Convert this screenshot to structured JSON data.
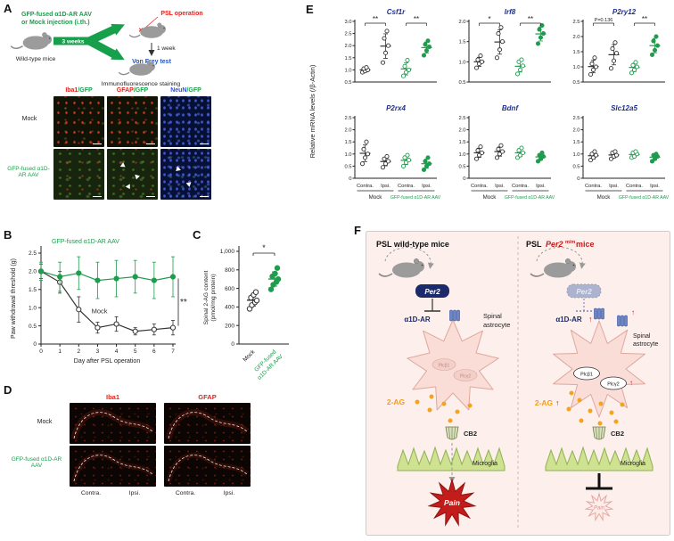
{
  "colors": {
    "green": "#1f9c4d",
    "red": "#e3231e",
    "blue": "#2456c4",
    "navy": "#1b2a6b",
    "orange": "#f59d17",
    "mock": "#333333"
  },
  "panels": {
    "A": {
      "label": "A",
      "injection1": "GFP-fused α1D-AR AAV",
      "injection2": "or Mock injection (i.th.)",
      "wildtype": "Wild-type mice",
      "weeks3": "3 weeks",
      "psl_mark": "✕",
      "psl": "PSL operation",
      "week1": "1 week",
      "vonfrey": "Von Frey test",
      "immuno": "Immunofluorescence staining",
      "headers": [
        {
          "main": "Iba1",
          "suffix": "/GFP"
        },
        {
          "main": "GFAP",
          "suffix": "/GFP"
        },
        {
          "main": "NeuN",
          "suffix": "/GFP"
        }
      ],
      "rows": [
        "Mock",
        "GFP-fused α1D-AR AAV"
      ]
    },
    "B": {
      "label": "B"
    },
    "C": {
      "label": "C"
    },
    "D": {
      "label": "D",
      "headers": [
        "Iba1",
        "GFAP"
      ],
      "rows": [
        "Mock",
        "GFP-fused α1D-AR AAV"
      ],
      "sides": [
        "Contra.",
        "Ipsi."
      ]
    },
    "E": {
      "label": "E"
    },
    "F": {
      "label": "F",
      "left_title": "PSL wild-type mice",
      "right_title": {
        "pre": "PSL",
        "gene": "Per2",
        "sup": "m/m",
        "post": "mice"
      },
      "shared": {
        "per2": "Per2",
        "a1dar": "α1D-AR",
        "spinal": "Spinal",
        "astrocyte": "astrocyte",
        "ag": "2-AG",
        "cb2": "CB2",
        "microglia": "Microglia",
        "pain": "Pain",
        "plcb1": "Plcβ1",
        "plcg2": "Plcγ2",
        "up": "↑"
      }
    }
  },
  "chart_data": [
    {
      "id": "B",
      "type": "line",
      "xlabel": "Day after PSL operation",
      "ylabel": "Paw withdrawal threshold (g)",
      "x": [
        0,
        1,
        2,
        3,
        4,
        5,
        6,
        7
      ],
      "ylim": [
        0,
        2.5
      ],
      "yticks": [
        0,
        0.5,
        1.0,
        1.5,
        2.0,
        2.5
      ],
      "significance": "**",
      "series": [
        {
          "name": "GFP-fused α1D-AR AAV",
          "color": "#1f9c4d",
          "marker": "filled",
          "values": [
            2.0,
            1.85,
            1.95,
            1.75,
            1.8,
            1.85,
            1.75,
            1.85
          ],
          "errors": [
            0.25,
            0.4,
            0.45,
            0.5,
            0.5,
            0.45,
            0.5,
            0.55
          ]
        },
        {
          "name": "Mock",
          "color": "#333333",
          "marker": "open",
          "values": [
            2.0,
            1.7,
            0.95,
            0.45,
            0.55,
            0.35,
            0.4,
            0.45
          ],
          "errors": [
            0.2,
            0.3,
            0.35,
            0.15,
            0.2,
            0.1,
            0.15,
            0.2
          ]
        }
      ]
    },
    {
      "id": "C",
      "type": "scatter",
      "ylabel_lines": [
        "Spinal 2-AG content",
        "(pmol/mg protein)"
      ],
      "ylim": [
        0,
        1000
      ],
      "yticks": [
        0,
        200,
        400,
        600,
        800,
        1000
      ],
      "significance": "*",
      "groups": [
        {
          "name": "Mock",
          "color": "#333333",
          "marker": "open",
          "points": [
            380,
            420,
            450,
            470,
            500,
            530,
            560
          ]
        },
        {
          "name_lines": [
            "GFP-fused",
            "α1D-AR AAV"
          ],
          "color": "#1f9c4d",
          "marker": "filled",
          "points": [
            590,
            640,
            670,
            700,
            730,
            760,
            820
          ]
        }
      ]
    },
    {
      "id": "E",
      "type": "scatter",
      "ylabel": "Relative mRNA levels (/β-Actin)",
      "group_labels": [
        "Contra.",
        "Ipsi.",
        "Contra.",
        "Ipsi."
      ],
      "cohort_labels": [
        "Mock",
        "GFP-fused α1D-AR AAV"
      ],
      "subplots": [
        {
          "title": "Csf1r",
          "ylim": [
            0.5,
            3.0
          ],
          "yticks": [
            0.5,
            1.0,
            1.5,
            2.0,
            2.5,
            3.0
          ],
          "groups": [
            [
              0.9,
              0.95,
              1.0,
              1.05,
              1.1
            ],
            [
              1.3,
              1.7,
              2.0,
              2.3,
              2.6
            ],
            [
              0.75,
              0.9,
              1.0,
              1.15,
              1.4
            ],
            [
              1.6,
              1.8,
              1.95,
              2.05,
              2.2
            ]
          ],
          "sig": [
            {
              "from": 0,
              "to": 1,
              "label": "**"
            },
            {
              "from": 2,
              "to": 3,
              "label": "**"
            }
          ]
        },
        {
          "title": "Irf8",
          "ylim": [
            0.5,
            2.0
          ],
          "yticks": [
            0.5,
            1.0,
            1.5,
            2.0
          ],
          "groups": [
            [
              0.85,
              0.95,
              1.0,
              1.05,
              1.15
            ],
            [
              1.1,
              1.3,
              1.5,
              1.7,
              1.85
            ],
            [
              0.7,
              0.8,
              0.9,
              1.0,
              1.05
            ],
            [
              1.45,
              1.6,
              1.7,
              1.8,
              1.9
            ]
          ],
          "sig": [
            {
              "from": 0,
              "to": 1,
              "label": "*"
            },
            {
              "from": 2,
              "to": 3,
              "label": "**"
            }
          ]
        },
        {
          "title": "P2ry12",
          "ylim": [
            0.5,
            2.5
          ],
          "yticks": [
            0.5,
            1.0,
            1.5,
            2.0,
            2.5
          ],
          "groups": [
            [
              0.75,
              0.9,
              1.0,
              1.1,
              1.3
            ],
            [
              0.95,
              1.2,
              1.45,
              1.6,
              1.8
            ],
            [
              0.8,
              0.9,
              1.0,
              1.05,
              1.15
            ],
            [
              1.4,
              1.55,
              1.7,
              1.85,
              2.0
            ]
          ],
          "sig": [
            {
              "from": 0,
              "to": 1,
              "label": "P=0.136"
            },
            {
              "from": 2,
              "to": 3,
              "label": "**"
            }
          ]
        },
        {
          "title": "P2rx4",
          "ylim": [
            0,
            2.5
          ],
          "yticks": [
            0,
            0.5,
            1.0,
            1.5,
            2.0,
            2.5
          ],
          "groups": [
            [
              0.6,
              0.85,
              1.0,
              1.2,
              1.5
            ],
            [
              0.45,
              0.6,
              0.7,
              0.8,
              0.9
            ],
            [
              0.5,
              0.65,
              0.75,
              0.85,
              0.95
            ],
            [
              0.35,
              0.5,
              0.6,
              0.7,
              0.85
            ]
          ],
          "sig": []
        },
        {
          "title": "Bdnf",
          "ylim": [
            0,
            2.5
          ],
          "yticks": [
            0,
            0.5,
            1.0,
            1.5,
            2.0,
            2.5
          ],
          "groups": [
            [
              0.8,
              0.95,
              1.05,
              1.15,
              1.3
            ],
            [
              0.85,
              1.0,
              1.1,
              1.2,
              1.35
            ],
            [
              0.85,
              0.95,
              1.05,
              1.15,
              1.25
            ],
            [
              0.7,
              0.8,
              0.9,
              0.95,
              1.05
            ]
          ],
          "sig": []
        },
        {
          "title": "Slc12a5",
          "ylim": [
            0,
            2.5
          ],
          "yticks": [
            0,
            0.5,
            1.0,
            1.5,
            2.0,
            2.5
          ],
          "groups": [
            [
              0.75,
              0.85,
              0.95,
              1.0,
              1.1
            ],
            [
              0.8,
              0.9,
              0.95,
              1.05,
              1.1
            ],
            [
              0.85,
              0.9,
              1.0,
              1.05,
              1.1
            ],
            [
              0.7,
              0.8,
              0.9,
              0.95,
              1.0
            ]
          ],
          "sig": []
        }
      ]
    }
  ]
}
